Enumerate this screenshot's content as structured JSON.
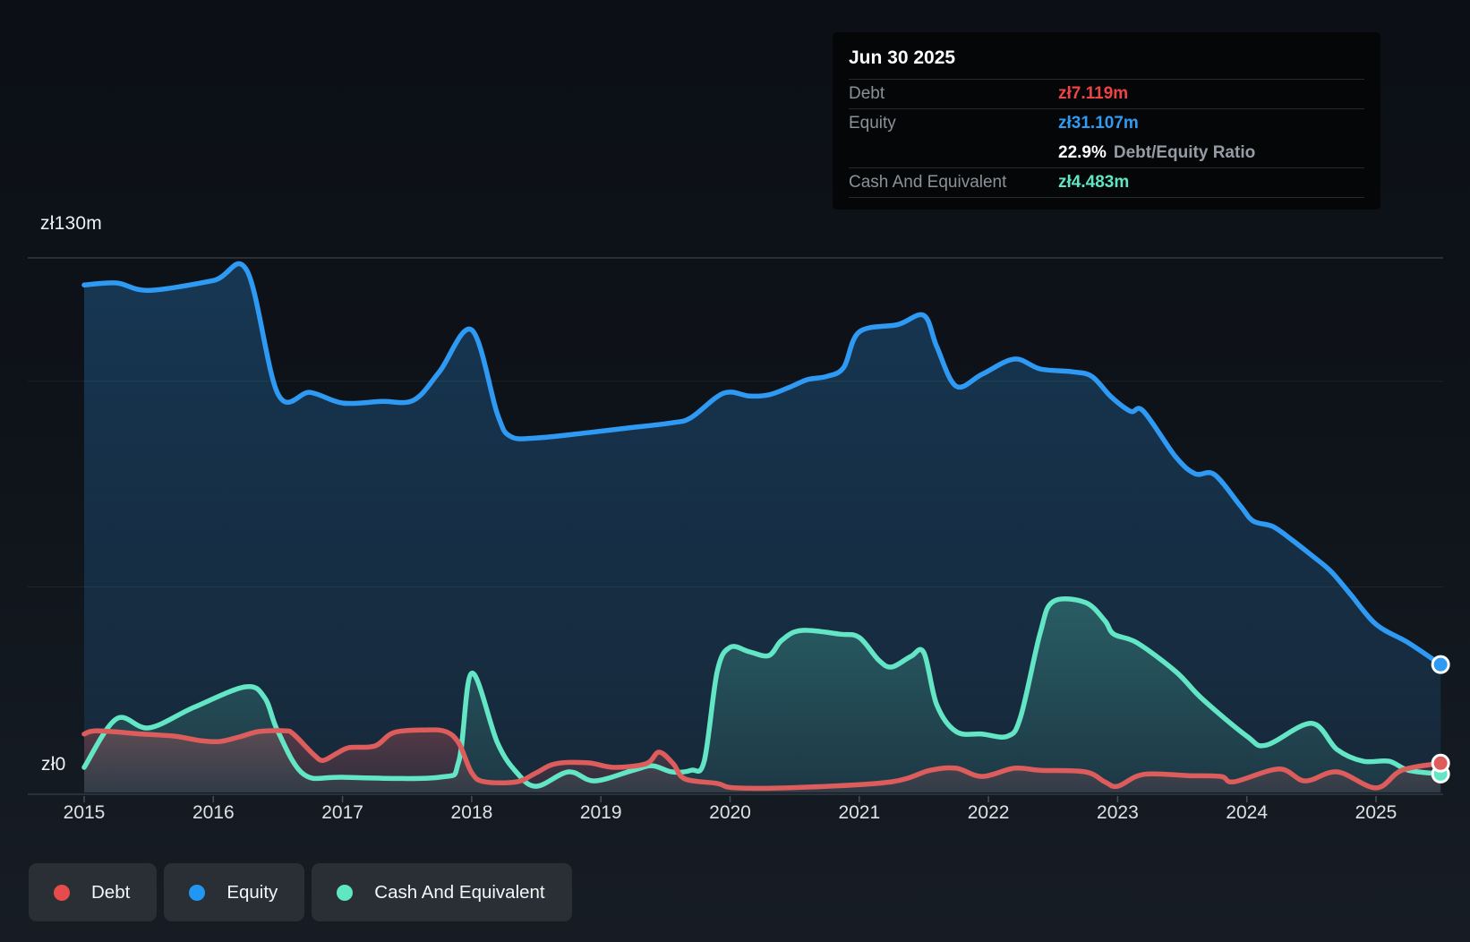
{
  "y_axis": {
    "top_label": "zł130m",
    "zero_label": "zł0"
  },
  "x_axis": {
    "years": [
      "2015",
      "2016",
      "2017",
      "2018",
      "2019",
      "2020",
      "2021",
      "2022",
      "2023",
      "2024",
      "2025"
    ]
  },
  "tooltip": {
    "title": "Jun 30 2025",
    "debt": {
      "label": "Debt",
      "value": "zł7.119m"
    },
    "equity": {
      "label": "Equity",
      "value": "zł31.107m"
    },
    "ratio": {
      "value": "22.9%",
      "label": "Debt/Equity Ratio"
    },
    "cash": {
      "label": "Cash And Equivalent",
      "value": "zł4.483m"
    }
  },
  "legend": {
    "items": [
      {
        "label": "Debt",
        "color": "#e64c4c"
      },
      {
        "label": "Equity",
        "color": "#2196f3"
      },
      {
        "label": "Cash And Equivalent",
        "color": "#5fe6c3"
      }
    ]
  },
  "chart_data": {
    "type": "area",
    "unit": "zł millions",
    "x_range": [
      2015,
      2025.5
    ],
    "ylim": [
      0,
      130
    ],
    "grid_values": [
      130,
      100,
      50
    ],
    "legend_position": "bottom-left",
    "series": [
      {
        "name": "Equity",
        "color": "#2e9af3",
        "points": [
          [
            2015.0,
            123.4
          ],
          [
            2015.25,
            123.9
          ],
          [
            2015.5,
            122.1
          ],
          [
            2016.0,
            124.5
          ],
          [
            2016.26,
            126.9
          ],
          [
            2016.5,
            96.9
          ],
          [
            2016.75,
            97.3
          ],
          [
            2017.0,
            94.7
          ],
          [
            2017.3,
            95.1
          ],
          [
            2017.55,
            95.4
          ],
          [
            2017.75,
            102.3
          ],
          [
            2018.0,
            112.5
          ],
          [
            2018.2,
            91.9
          ],
          [
            2018.3,
            86.6
          ],
          [
            2018.5,
            86.2
          ],
          [
            2018.9,
            87.5
          ],
          [
            2019.2,
            88.6
          ],
          [
            2019.55,
            89.9
          ],
          [
            2019.7,
            91.2
          ],
          [
            2019.95,
            97.1
          ],
          [
            2020.15,
            96.4
          ],
          [
            2020.3,
            96.7
          ],
          [
            2020.45,
            98.4
          ],
          [
            2020.6,
            100.4
          ],
          [
            2020.75,
            101.2
          ],
          [
            2020.88,
            103.4
          ],
          [
            2021.0,
            112.0
          ],
          [
            2021.3,
            113.8
          ],
          [
            2021.5,
            116.0
          ],
          [
            2021.6,
            108.4
          ],
          [
            2021.75,
            98.8
          ],
          [
            2021.95,
            101.7
          ],
          [
            2022.2,
            105.4
          ],
          [
            2022.4,
            103.0
          ],
          [
            2022.65,
            102.3
          ],
          [
            2022.8,
            101.2
          ],
          [
            2022.95,
            96.2
          ],
          [
            2023.1,
            92.7
          ],
          [
            2023.2,
            92.7
          ],
          [
            2023.45,
            81.6
          ],
          [
            2023.6,
            77.5
          ],
          [
            2023.75,
            77.3
          ],
          [
            2023.95,
            69.7
          ],
          [
            2024.05,
            66.0
          ],
          [
            2024.2,
            64.7
          ],
          [
            2024.35,
            61.4
          ],
          [
            2024.5,
            57.7
          ],
          [
            2024.65,
            53.8
          ],
          [
            2024.8,
            48.3
          ],
          [
            2025.0,
            40.9
          ],
          [
            2025.25,
            36.4
          ],
          [
            2025.5,
            31.107
          ]
        ]
      },
      {
        "name": "Cash And Equivalent",
        "color": "#63e6c5",
        "points": [
          [
            2015.0,
            6.1
          ],
          [
            2015.25,
            17.9
          ],
          [
            2015.5,
            15.7
          ],
          [
            2015.85,
            20.7
          ],
          [
            2016.25,
            25.7
          ],
          [
            2016.4,
            22.9
          ],
          [
            2016.5,
            14.8
          ],
          [
            2016.7,
            4.4
          ],
          [
            2017.0,
            3.7
          ],
          [
            2017.75,
            3.7
          ],
          [
            2017.9,
            7.6
          ],
          [
            2018.0,
            29.0
          ],
          [
            2018.2,
            12.0
          ],
          [
            2018.35,
            4.8
          ],
          [
            2018.5,
            1.5
          ],
          [
            2018.75,
            5.0
          ],
          [
            2018.95,
            2.8
          ],
          [
            2019.25,
            5.4
          ],
          [
            2019.4,
            6.5
          ],
          [
            2019.55,
            5.0
          ],
          [
            2019.7,
            5.4
          ],
          [
            2019.8,
            7.6
          ],
          [
            2019.9,
            29.4
          ],
          [
            2020.0,
            35.3
          ],
          [
            2020.15,
            34.2
          ],
          [
            2020.3,
            33.3
          ],
          [
            2020.4,
            37.0
          ],
          [
            2020.55,
            39.4
          ],
          [
            2020.85,
            38.5
          ],
          [
            2021.0,
            37.7
          ],
          [
            2021.15,
            32.2
          ],
          [
            2021.25,
            30.5
          ],
          [
            2021.4,
            33.1
          ],
          [
            2021.5,
            34.0
          ],
          [
            2021.6,
            21.3
          ],
          [
            2021.75,
            14.8
          ],
          [
            2021.95,
            14.2
          ],
          [
            2022.15,
            13.7
          ],
          [
            2022.25,
            18.5
          ],
          [
            2022.4,
            38.7
          ],
          [
            2022.5,
            46.4
          ],
          [
            2022.75,
            46.2
          ],
          [
            2022.9,
            41.8
          ],
          [
            2022.97,
            38.5
          ],
          [
            2023.15,
            36.4
          ],
          [
            2023.45,
            29.4
          ],
          [
            2023.65,
            22.9
          ],
          [
            2024.0,
            13.7
          ],
          [
            2024.15,
            11.5
          ],
          [
            2024.5,
            16.8
          ],
          [
            2024.7,
            10.4
          ],
          [
            2024.9,
            7.6
          ],
          [
            2025.1,
            7.6
          ],
          [
            2025.25,
            5.4
          ],
          [
            2025.5,
            4.483
          ]
        ]
      },
      {
        "name": "Debt",
        "color": "#dd5c5c",
        "points": [
          [
            2015.0,
            14.2
          ],
          [
            2015.1,
            15.0
          ],
          [
            2015.45,
            14.2
          ],
          [
            2015.7,
            13.7
          ],
          [
            2015.9,
            12.6
          ],
          [
            2016.05,
            12.4
          ],
          [
            2016.2,
            13.5
          ],
          [
            2016.35,
            14.8
          ],
          [
            2016.55,
            15.0
          ],
          [
            2016.62,
            14.2
          ],
          [
            2016.78,
            9.1
          ],
          [
            2016.85,
            7.8
          ],
          [
            2016.95,
            9.4
          ],
          [
            2017.05,
            10.9
          ],
          [
            2017.25,
            11.3
          ],
          [
            2017.4,
            14.6
          ],
          [
            2017.65,
            15.2
          ],
          [
            2017.8,
            14.8
          ],
          [
            2017.9,
            12.0
          ],
          [
            2018.0,
            4.8
          ],
          [
            2018.1,
            2.6
          ],
          [
            2018.35,
            2.6
          ],
          [
            2018.5,
            4.8
          ],
          [
            2018.65,
            7.0
          ],
          [
            2018.9,
            7.2
          ],
          [
            2019.1,
            6.1
          ],
          [
            2019.35,
            7.0
          ],
          [
            2019.45,
            9.8
          ],
          [
            2019.56,
            7.0
          ],
          [
            2019.65,
            3.3
          ],
          [
            2019.9,
            2.2
          ],
          [
            2020.05,
            1.1
          ],
          [
            2020.6,
            1.3
          ],
          [
            2021.25,
            2.6
          ],
          [
            2021.55,
            5.4
          ],
          [
            2021.75,
            5.9
          ],
          [
            2021.95,
            3.9
          ],
          [
            2022.2,
            5.9
          ],
          [
            2022.4,
            5.4
          ],
          [
            2022.75,
            5.0
          ],
          [
            2022.9,
            2.6
          ],
          [
            2023.0,
            1.5
          ],
          [
            2023.2,
            4.4
          ],
          [
            2023.55,
            4.1
          ],
          [
            2023.8,
            3.9
          ],
          [
            2023.9,
            2.6
          ],
          [
            2024.25,
            5.7
          ],
          [
            2024.45,
            2.8
          ],
          [
            2024.7,
            5.0
          ],
          [
            2025.0,
            1.1
          ],
          [
            2025.2,
            5.4
          ],
          [
            2025.5,
            7.119
          ]
        ]
      }
    ]
  }
}
